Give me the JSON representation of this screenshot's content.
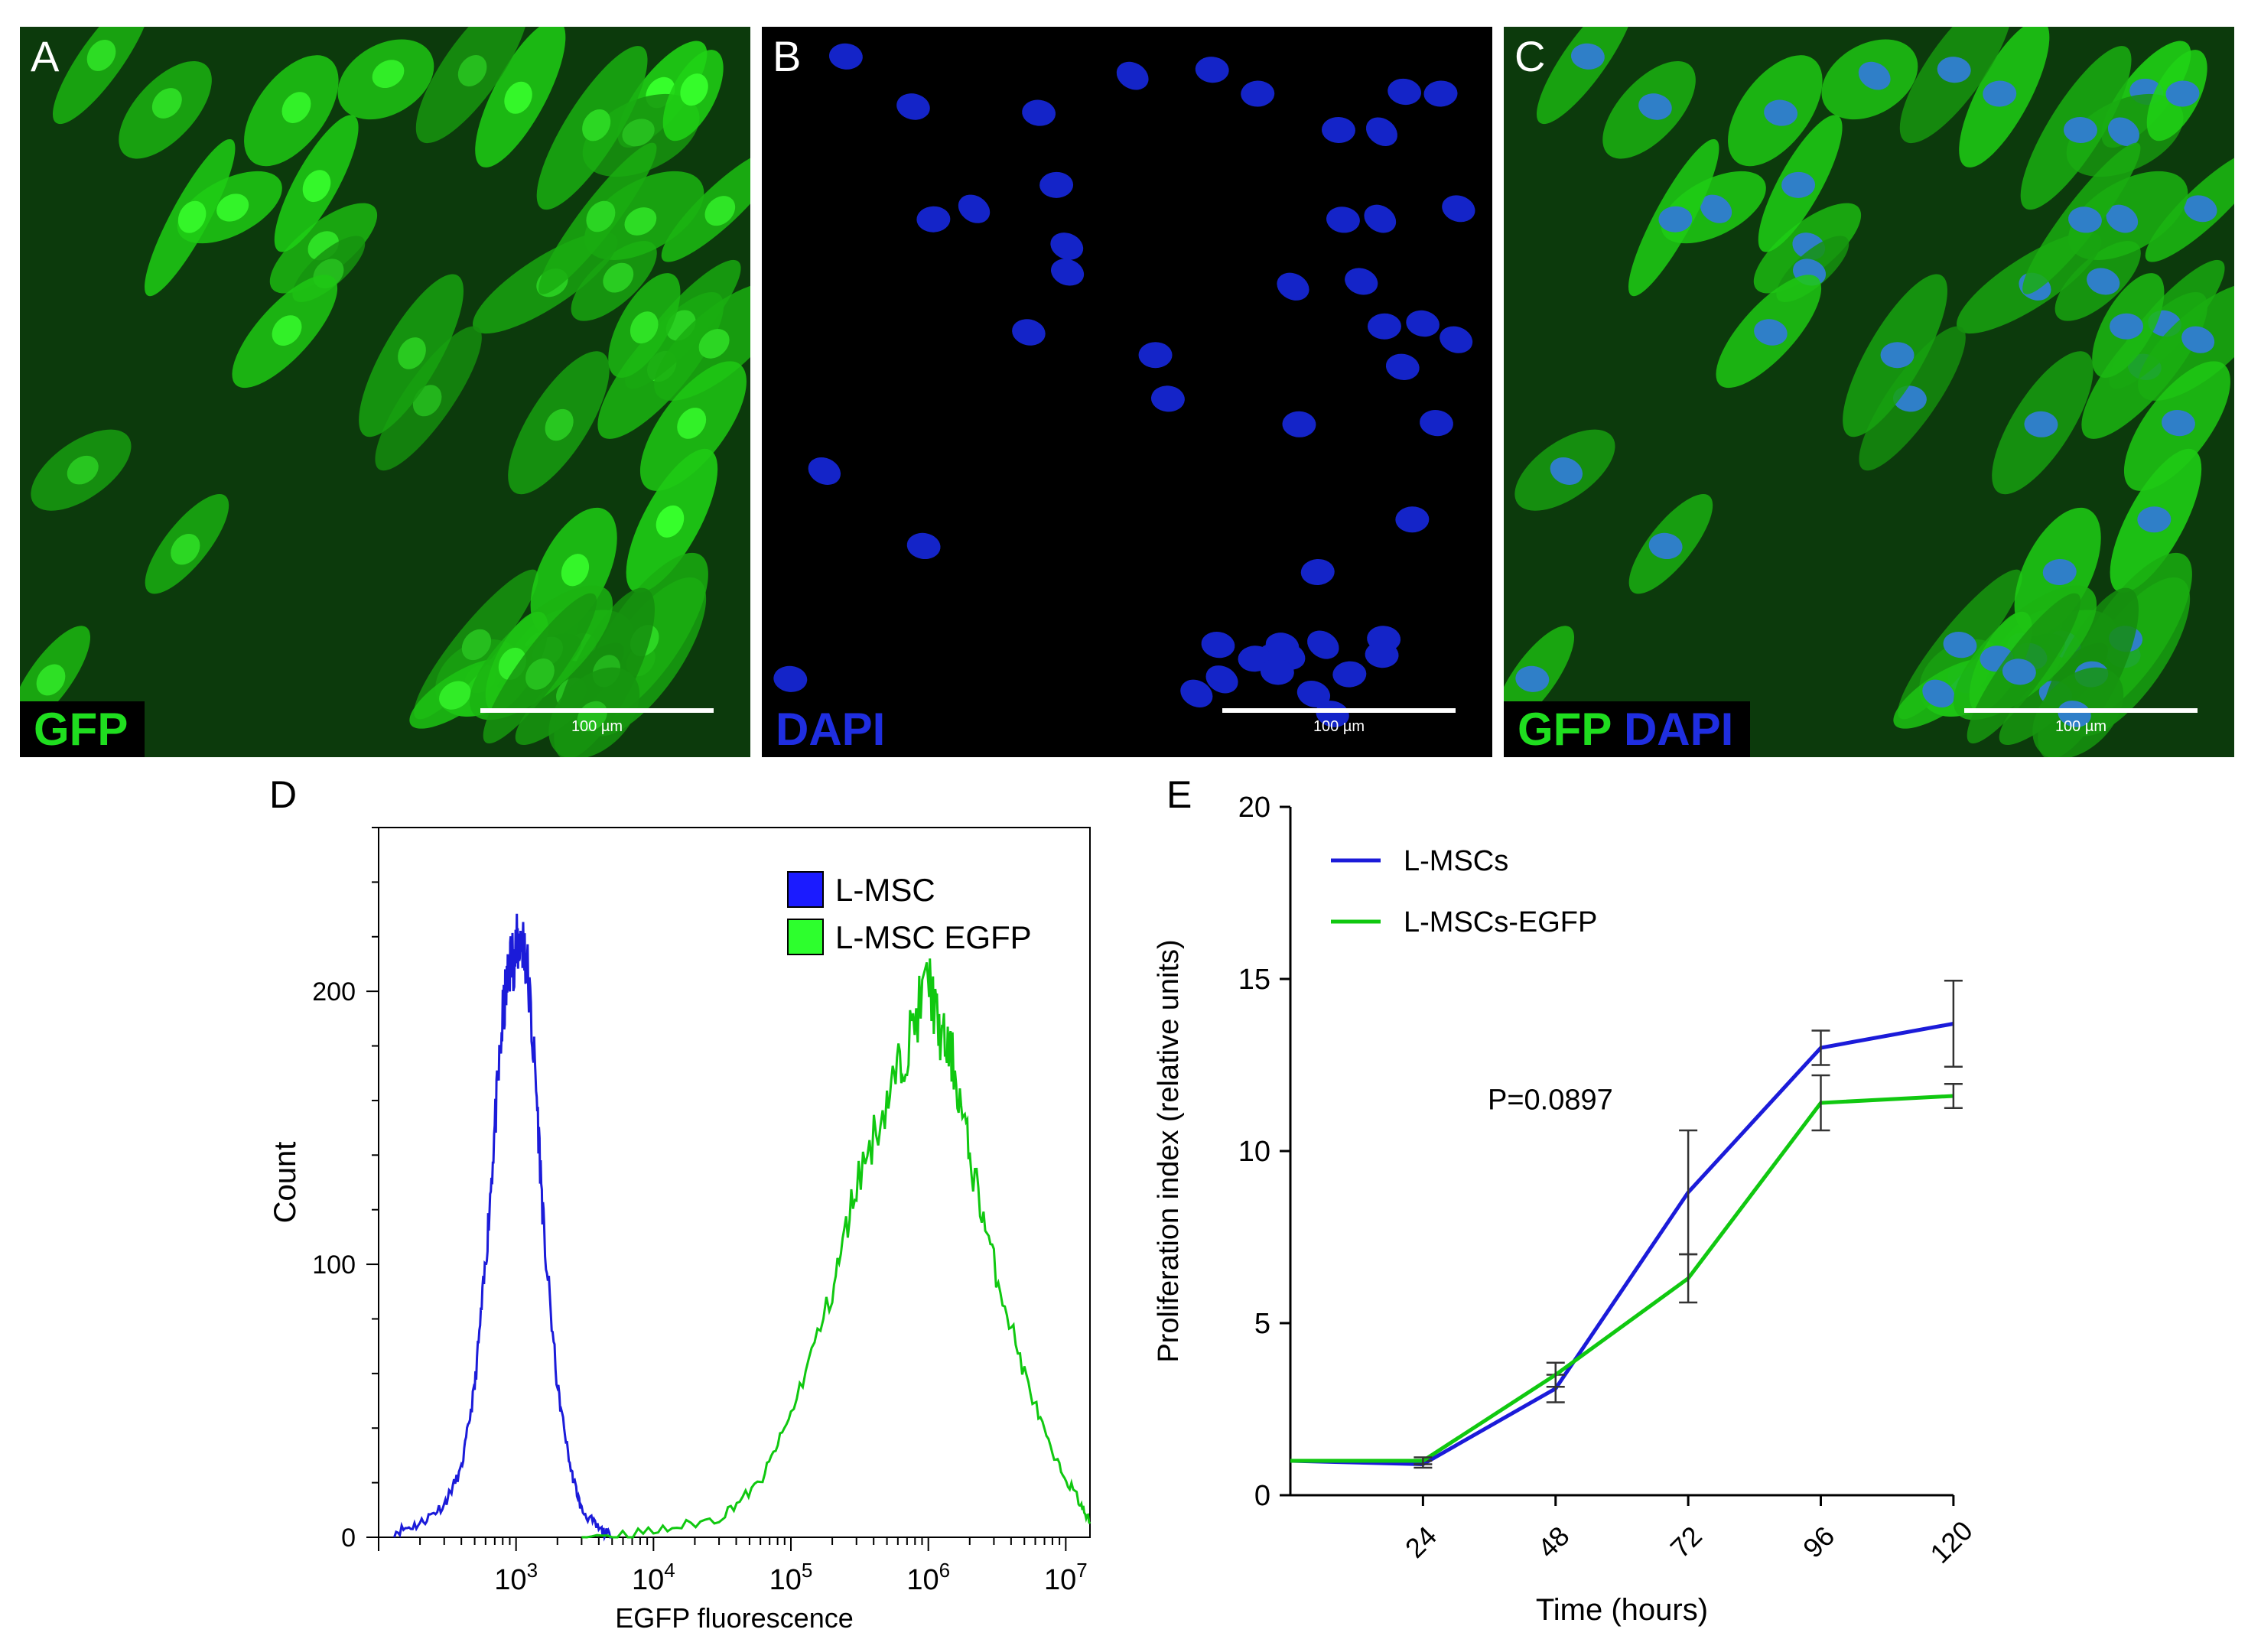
{
  "panels": {
    "a": {
      "letter": "A",
      "stain": "GFP",
      "scale_bar": "100 µm"
    },
    "b": {
      "letter": "B",
      "stain": "DAPI",
      "scale_bar": "100 µm"
    },
    "c": {
      "letter": "C",
      "stain_1": "GFP",
      "stain_2": "DAPI",
      "scale_bar": "100 µm"
    }
  },
  "colors": {
    "gfp": "#1fde1f",
    "dapi": "#1f2ee0",
    "lmsc": "#1b1bd9",
    "lmsc_egfp": "#10c810"
  },
  "chart_data": [
    {
      "panel": "D",
      "type": "histogram",
      "xlabel": "EGFP fluorescence",
      "ylabel": "Count",
      "xscale": "log",
      "xlim": [
        100,
        15000000
      ],
      "ylim": [
        0,
        260
      ],
      "yticks": [
        0,
        100,
        200
      ],
      "xticks": [
        {
          "value": 1000,
          "base": "10",
          "exp": "3"
        },
        {
          "value": 10000,
          "base": "10",
          "exp": "4"
        },
        {
          "value": 100000,
          "base": "10",
          "exp": "5"
        },
        {
          "value": 1000000,
          "base": "10",
          "exp": "6"
        },
        {
          "value": 10000000,
          "base": "10",
          "exp": "7"
        }
      ],
      "legend": [
        "L-MSC",
        "L-MSC EGFP"
      ],
      "legend_position": "top-right",
      "series": [
        {
          "name": "L-MSC",
          "color": "#1b1bd9",
          "x": [
            130,
            200,
            300,
            400,
            500,
            600,
            700,
            800,
            900,
            1000,
            1100,
            1200,
            1400,
            1600,
            2000,
            2500,
            3000,
            4000,
            5000
          ],
          "y": [
            2,
            5,
            12,
            25,
            55,
            100,
            150,
            190,
            210,
            215,
            220,
            210,
            165,
            110,
            55,
            25,
            10,
            3,
            0
          ]
        },
        {
          "name": "L-MSC EGFP",
          "color": "#10c810",
          "x": [
            3000,
            10000,
            30000,
            60000,
            100000,
            200000,
            300000,
            500000,
            700000,
            1000000,
            1200000,
            1500000,
            2000000,
            3000000,
            5000000,
            8000000,
            12000000,
            15000000
          ],
          "y": [
            0,
            2,
            7,
            20,
            45,
            90,
            130,
            160,
            180,
            205,
            185,
            175,
            140,
            100,
            60,
            30,
            15,
            5
          ]
        }
      ]
    },
    {
      "panel": "E",
      "type": "line",
      "xlabel": "Time (hours)",
      "ylabel": "Proliferation index (relative units)",
      "xlim": [
        0,
        125
      ],
      "ylim": [
        0,
        20
      ],
      "yticks": [
        0,
        5,
        10,
        15,
        20
      ],
      "xticks": [
        24,
        48,
        72,
        96,
        120
      ],
      "annotation": "P=0.0897",
      "legend": [
        "L-MSCs",
        "L-MSCs-EGFP"
      ],
      "legend_position": "top-left",
      "series": [
        {
          "name": "L-MSCs",
          "color": "#1b1bd9",
          "x": [
            0,
            24,
            48,
            72,
            96,
            120
          ],
          "y": [
            1.0,
            0.9,
            3.1,
            8.8,
            13.0,
            13.7
          ],
          "err": [
            0,
            0.1,
            0.4,
            1.8,
            0.5,
            1.25
          ]
        },
        {
          "name": "L-MSCs-EGFP",
          "color": "#10c810",
          "x": [
            0,
            24,
            48,
            72,
            96,
            120
          ],
          "y": [
            1.0,
            1.0,
            3.5,
            6.3,
            11.4,
            11.6
          ],
          "err": [
            0,
            0.1,
            0.35,
            0.7,
            0.8,
            0.35
          ]
        }
      ]
    }
  ]
}
